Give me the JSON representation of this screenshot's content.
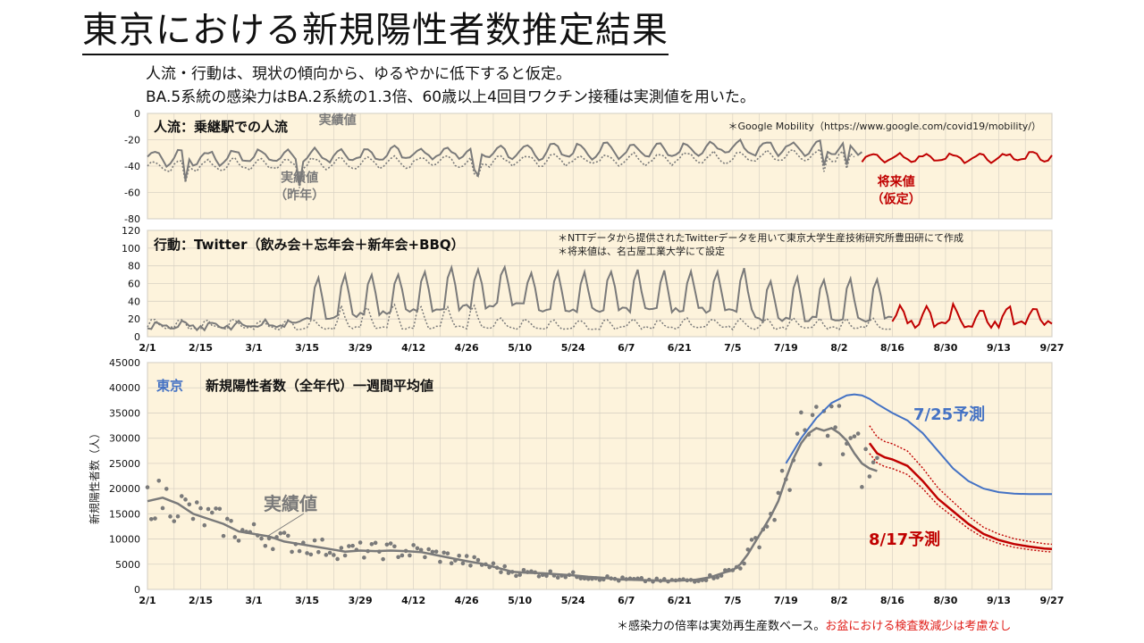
{
  "title": "東京における新規陽性者数推定結果",
  "subtitle_lines": [
    "人流・行動は、現状の傾向から、ゆるやかに低下すると仮定。",
    "BA.5系統の感染力はBA.2系統の1.3倍、60歳以上4回目ワクチン接種は実測値を用いた。"
  ],
  "footnote": {
    "main": "＊感染力の倍率は実効再生産数ベース。",
    "warning": "お盆における検査数減少は考慮なし"
  },
  "colors": {
    "background": "#fdf3dc",
    "actual": "#7a7a7a",
    "future": "#c00000",
    "forecast_725": "#4472c4",
    "forecast_817": "#c00000",
    "grid": "#d9d2c4"
  },
  "chart_data": [
    {
      "type": "line",
      "title": "人流：乗継駅での人流",
      "note": "＊Google Mobility（https://www.google.com/covid19/mobility/）",
      "ylim": [
        -80,
        0
      ],
      "yticks": [
        "0",
        "-20",
        "-40",
        "-60",
        "-80"
      ],
      "x_range_days": [
        0,
        238
      ],
      "annotations": [
        {
          "text": "実績値",
          "day": 50,
          "value": -8
        },
        {
          "text": "実績値",
          "day": 40,
          "value": -52
        },
        {
          "text": "（昨年）",
          "day": 40,
          "value": -65
        },
        {
          "text": "将来値",
          "day": 197,
          "value": -55
        },
        {
          "text": "（仮定）",
          "day": 197,
          "value": -68
        }
      ],
      "series": [
        {
          "style": "actual",
          "day_start": 0,
          "day_end": 188,
          "base": -34,
          "end": -25,
          "amp": 5
        },
        {
          "style": "last_year",
          "day_start": 0,
          "day_end": 186,
          "base": -40,
          "end": -32,
          "amp": 4
        },
        {
          "style": "future",
          "day_start": 188,
          "day_end": 238,
          "base": -34,
          "end": -33,
          "amp": 3
        }
      ]
    },
    {
      "type": "line",
      "title": "行動：Twitter（飲み会＋忘年会＋新年会+BBQ）",
      "notes": [
        "＊NTTデータから提供されたTwitterデータを用いて東京大学生産技術研究所豊田研にて作成",
        "＊将来値は、名古屋工業大学にて設定"
      ],
      "ylim": [
        0,
        120
      ],
      "yticks": [
        "0",
        "20",
        "40",
        "60",
        "80",
        "100",
        "120"
      ],
      "x_range_days": [
        0,
        238
      ],
      "series": [
        {
          "style": "actual",
          "day_start": 0,
          "day_end": 196
        },
        {
          "style": "last_year",
          "day_start": 0,
          "day_end": 196
        },
        {
          "style": "future",
          "day_start": 196,
          "day_end": 238
        }
      ]
    },
    {
      "type": "line",
      "title_region": "東京",
      "title": "新規陽性者数（全年代）一週間平均値",
      "ylabel": "新規陽性者数（人）",
      "ylim": [
        0,
        45000
      ],
      "yticks": [
        "0",
        "5000",
        "10000",
        "15000",
        "20000",
        "25000",
        "30000",
        "35000",
        "40000",
        "45000"
      ],
      "x_range_days": [
        0,
        238
      ],
      "xticks": [
        {
          "label": "2/1",
          "day": 0
        },
        {
          "label": "2/15",
          "day": 14
        },
        {
          "label": "3/1",
          "day": 28
        },
        {
          "label": "3/15",
          "day": 42
        },
        {
          "label": "3/29",
          "day": 56
        },
        {
          "label": "4/12",
          "day": 70
        },
        {
          "label": "4/26",
          "day": 84
        },
        {
          "label": "5/10",
          "day": 98
        },
        {
          "label": "5/24",
          "day": 112
        },
        {
          "label": "6/7",
          "day": 126
        },
        {
          "label": "6/21",
          "day": 140
        },
        {
          "label": "7/5",
          "day": 154
        },
        {
          "label": "7/19",
          "day": 168
        },
        {
          "label": "8/2",
          "day": 182
        },
        {
          "label": "8/16",
          "day": 196
        },
        {
          "label": "8/30",
          "day": 210
        },
        {
          "label": "9/13",
          "day": 224
        },
        {
          "label": "9/27",
          "day": 238
        }
      ],
      "labels": {
        "actual": "実績値",
        "forecast_725": "7/25予測",
        "forecast_817": "8/17予測"
      },
      "actual_7day_avg": {
        "days": [
          0,
          4,
          8,
          12,
          16,
          20,
          24,
          28,
          32,
          36,
          40,
          44,
          48,
          52,
          56,
          60,
          64,
          68,
          72,
          76,
          80,
          84,
          88,
          92,
          96,
          100,
          104,
          108,
          112,
          116,
          120,
          124,
          128,
          132,
          136,
          140,
          144,
          148,
          152,
          154,
          156,
          158,
          160,
          162,
          164,
          166,
          168,
          170,
          172,
          174,
          176,
          178,
          180,
          182,
          184,
          186,
          188,
          190,
          192
        ],
        "values": [
          17500,
          18200,
          17000,
          15000,
          14000,
          13000,
          11500,
          11000,
          10500,
          9500,
          9000,
          8500,
          8000,
          7500,
          7700,
          7600,
          7700,
          7600,
          7400,
          6800,
          6200,
          5600,
          5100,
          4300,
          3500,
          3300,
          3200,
          3000,
          2800,
          2500,
          2300,
          2000,
          1900,
          1800,
          1700,
          1750,
          1900,
          2400,
          3400,
          3800,
          5000,
          7000,
          9500,
          12000,
          14500,
          17500,
          22000,
          26000,
          29000,
          31000,
          32000,
          31500,
          32000,
          31000,
          29500,
          27000,
          25000,
          24000,
          23500
        ]
      },
      "forecast_725": {
        "days": [
          168,
          172,
          176,
          180,
          184,
          186,
          188,
          190,
          192,
          196,
          200,
          204,
          208,
          212,
          216,
          220,
          224,
          228,
          232,
          238
        ],
        "values": [
          25000,
          30000,
          34000,
          37000,
          38500,
          38700,
          38500,
          37800,
          36800,
          35000,
          33500,
          31000,
          27500,
          24000,
          21500,
          20000,
          19300,
          19000,
          18900,
          18900
        ]
      },
      "forecast_817": {
        "days": [
          190,
          192,
          194,
          196,
          200,
          204,
          208,
          212,
          216,
          220,
          224,
          228,
          232,
          236,
          238
        ],
        "values": [
          29000,
          27000,
          26200,
          25800,
          24500,
          21500,
          18000,
          15500,
          13000,
          11000,
          9800,
          9000,
          8500,
          8100,
          8000
        ]
      }
    }
  ]
}
